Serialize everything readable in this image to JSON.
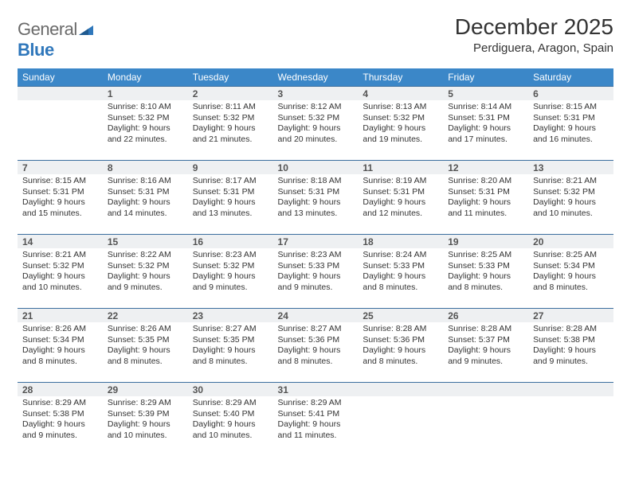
{
  "logo": {
    "word1": "General",
    "word2": "Blue"
  },
  "title": "December 2025",
  "location": "Perdiguera, Aragon, Spain",
  "colors": {
    "header_bg": "#3b87c8",
    "header_text": "#ffffff",
    "daynum_bg": "#eef0f2",
    "daynum_border": "#3b6e9e",
    "body_text": "#333333",
    "logo_gray": "#6a6a6a",
    "logo_blue": "#2f77bb"
  },
  "weekdays": [
    "Sunday",
    "Monday",
    "Tuesday",
    "Wednesday",
    "Thursday",
    "Friday",
    "Saturday"
  ],
  "start_offset": 1,
  "days": [
    {
      "n": 1,
      "sunrise": "8:10 AM",
      "sunset": "5:32 PM",
      "daylight": "9 hours and 22 minutes."
    },
    {
      "n": 2,
      "sunrise": "8:11 AM",
      "sunset": "5:32 PM",
      "daylight": "9 hours and 21 minutes."
    },
    {
      "n": 3,
      "sunrise": "8:12 AM",
      "sunset": "5:32 PM",
      "daylight": "9 hours and 20 minutes."
    },
    {
      "n": 4,
      "sunrise": "8:13 AM",
      "sunset": "5:32 PM",
      "daylight": "9 hours and 19 minutes."
    },
    {
      "n": 5,
      "sunrise": "8:14 AM",
      "sunset": "5:31 PM",
      "daylight": "9 hours and 17 minutes."
    },
    {
      "n": 6,
      "sunrise": "8:15 AM",
      "sunset": "5:31 PM",
      "daylight": "9 hours and 16 minutes."
    },
    {
      "n": 7,
      "sunrise": "8:15 AM",
      "sunset": "5:31 PM",
      "daylight": "9 hours and 15 minutes."
    },
    {
      "n": 8,
      "sunrise": "8:16 AM",
      "sunset": "5:31 PM",
      "daylight": "9 hours and 14 minutes."
    },
    {
      "n": 9,
      "sunrise": "8:17 AM",
      "sunset": "5:31 PM",
      "daylight": "9 hours and 13 minutes."
    },
    {
      "n": 10,
      "sunrise": "8:18 AM",
      "sunset": "5:31 PM",
      "daylight": "9 hours and 13 minutes."
    },
    {
      "n": 11,
      "sunrise": "8:19 AM",
      "sunset": "5:31 PM",
      "daylight": "9 hours and 12 minutes."
    },
    {
      "n": 12,
      "sunrise": "8:20 AM",
      "sunset": "5:31 PM",
      "daylight": "9 hours and 11 minutes."
    },
    {
      "n": 13,
      "sunrise": "8:21 AM",
      "sunset": "5:32 PM",
      "daylight": "9 hours and 10 minutes."
    },
    {
      "n": 14,
      "sunrise": "8:21 AM",
      "sunset": "5:32 PM",
      "daylight": "9 hours and 10 minutes."
    },
    {
      "n": 15,
      "sunrise": "8:22 AM",
      "sunset": "5:32 PM",
      "daylight": "9 hours and 9 minutes."
    },
    {
      "n": 16,
      "sunrise": "8:23 AM",
      "sunset": "5:32 PM",
      "daylight": "9 hours and 9 minutes."
    },
    {
      "n": 17,
      "sunrise": "8:23 AM",
      "sunset": "5:33 PM",
      "daylight": "9 hours and 9 minutes."
    },
    {
      "n": 18,
      "sunrise": "8:24 AM",
      "sunset": "5:33 PM",
      "daylight": "9 hours and 8 minutes."
    },
    {
      "n": 19,
      "sunrise": "8:25 AM",
      "sunset": "5:33 PM",
      "daylight": "9 hours and 8 minutes."
    },
    {
      "n": 20,
      "sunrise": "8:25 AM",
      "sunset": "5:34 PM",
      "daylight": "9 hours and 8 minutes."
    },
    {
      "n": 21,
      "sunrise": "8:26 AM",
      "sunset": "5:34 PM",
      "daylight": "9 hours and 8 minutes."
    },
    {
      "n": 22,
      "sunrise": "8:26 AM",
      "sunset": "5:35 PM",
      "daylight": "9 hours and 8 minutes."
    },
    {
      "n": 23,
      "sunrise": "8:27 AM",
      "sunset": "5:35 PM",
      "daylight": "9 hours and 8 minutes."
    },
    {
      "n": 24,
      "sunrise": "8:27 AM",
      "sunset": "5:36 PM",
      "daylight": "9 hours and 8 minutes."
    },
    {
      "n": 25,
      "sunrise": "8:28 AM",
      "sunset": "5:36 PM",
      "daylight": "9 hours and 8 minutes."
    },
    {
      "n": 26,
      "sunrise": "8:28 AM",
      "sunset": "5:37 PM",
      "daylight": "9 hours and 9 minutes."
    },
    {
      "n": 27,
      "sunrise": "8:28 AM",
      "sunset": "5:38 PM",
      "daylight": "9 hours and 9 minutes."
    },
    {
      "n": 28,
      "sunrise": "8:29 AM",
      "sunset": "5:38 PM",
      "daylight": "9 hours and 9 minutes."
    },
    {
      "n": 29,
      "sunrise": "8:29 AM",
      "sunset": "5:39 PM",
      "daylight": "9 hours and 10 minutes."
    },
    {
      "n": 30,
      "sunrise": "8:29 AM",
      "sunset": "5:40 PM",
      "daylight": "9 hours and 10 minutes."
    },
    {
      "n": 31,
      "sunrise": "8:29 AM",
      "sunset": "5:41 PM",
      "daylight": "9 hours and 11 minutes."
    }
  ],
  "labels": {
    "sunrise": "Sunrise:",
    "sunset": "Sunset:",
    "daylight": "Daylight:"
  }
}
